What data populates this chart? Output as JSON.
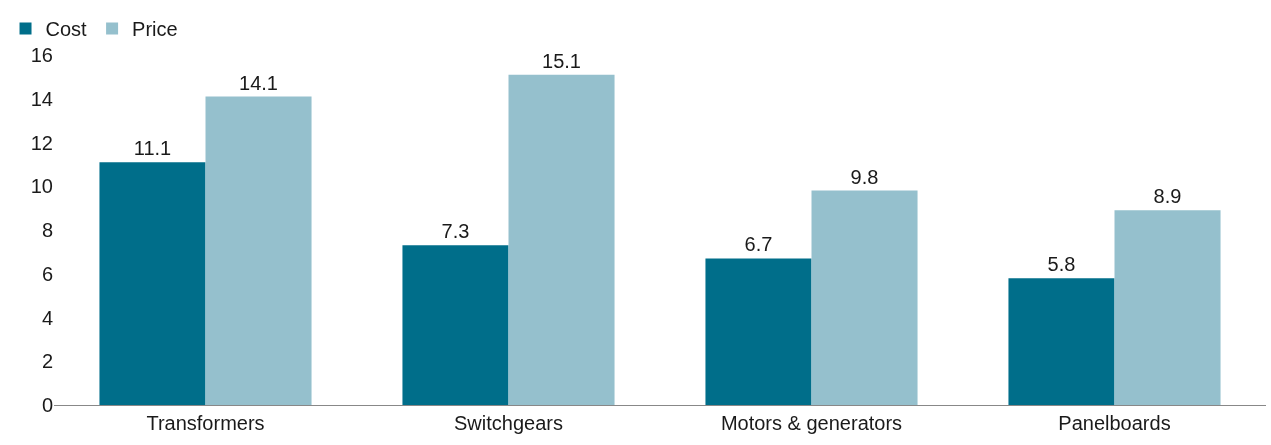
{
  "chart_data": {
    "type": "bar",
    "categories": [
      "Transformers",
      "Switchgears",
      "Motors & generators",
      "Panelboards"
    ],
    "series": [
      {
        "name": "Cost",
        "color": "#006e8a",
        "values": [
          11.1,
          7.3,
          6.7,
          5.8
        ]
      },
      {
        "name": "Price",
        "color": "#95c0cd",
        "values": [
          14.1,
          15.1,
          9.8,
          8.9
        ]
      }
    ],
    "ylim": [
      0,
      16
    ],
    "yticks": [
      0,
      2,
      4,
      6,
      8,
      10,
      12,
      14,
      16
    ],
    "legend": "top left",
    "data_labels": true
  }
}
